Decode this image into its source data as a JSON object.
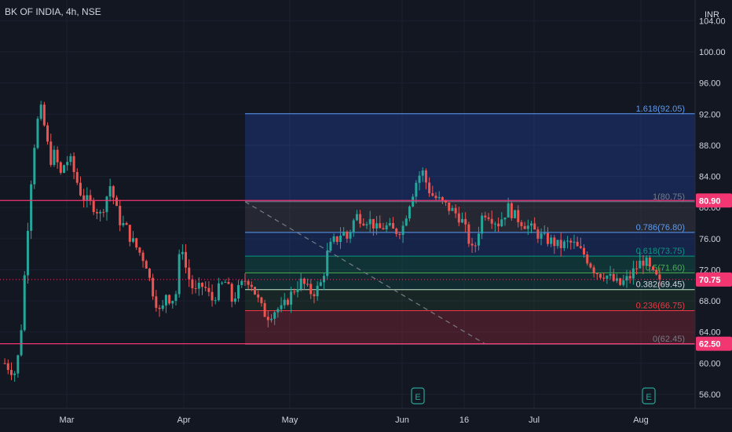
{
  "header": {
    "title": "BK OF INDIA, 4h, NSE"
  },
  "currency": "INR",
  "colors": {
    "background": "#131722",
    "up": "#26a69a",
    "down": "#ef5350",
    "grid": "#1e222d",
    "axis_text": "#d1d4dc",
    "range_line": "#f23672",
    "current_price": "#f23672"
  },
  "price_axis": {
    "ticks": [
      "104.00",
      "100.00",
      "96.00",
      "92.00",
      "88.00",
      "84.00",
      "80.00",
      "76.00",
      "72.00",
      "68.00",
      "64.00",
      "60.00",
      "56.00"
    ],
    "ylim": [
      53.5,
      106
    ]
  },
  "time_axis": {
    "ticks": [
      "Mar",
      "Apr",
      "May",
      "Jun",
      "16",
      "Jul",
      "Aug"
    ]
  },
  "price_badges": {
    "high": "80.90",
    "current": "70.75",
    "low": "62.50"
  },
  "fibonacci": {
    "levels": [
      {
        "label": "1.618(92.05)",
        "price": 92.05
      },
      {
        "label": "1(80.75)",
        "price": 80.75
      },
      {
        "label": "0.786(76.80)",
        "price": 76.8
      },
      {
        "label": "0.618(73.75)",
        "price": 73.75
      },
      {
        "label": "0.5(71.60)",
        "price": 71.6
      },
      {
        "label": "0.382(69.45)",
        "price": 69.45
      },
      {
        "label": "0.236(66.75)",
        "price": 66.75
      },
      {
        "label": "0(62.45)",
        "price": 62.45
      }
    ]
  },
  "horizontal_levels": [
    80.9,
    62.5
  ],
  "current_price": 70.75,
  "events": [
    "E",
    "E"
  ],
  "chart_data": {
    "type": "candlestick",
    "title": "BK OF INDIA, 4h, NSE",
    "y_unit": "INR",
    "ylim": [
      53.5,
      106
    ],
    "x_ticks": [
      "Mar",
      "Apr",
      "May",
      "Jun",
      "16",
      "Jul",
      "Aug"
    ],
    "path": [
      [
        0,
        60
      ],
      [
        1,
        59.3
      ],
      [
        2,
        58.8
      ],
      [
        3,
        62
      ],
      [
        4,
        72
      ],
      [
        5,
        82
      ],
      [
        6,
        89
      ],
      [
        7,
        93
      ],
      [
        8,
        90
      ],
      [
        9,
        86
      ],
      [
        10,
        87
      ],
      [
        11,
        84
      ],
      [
        12,
        86
      ],
      [
        13,
        86
      ],
      [
        14,
        84
      ],
      [
        15,
        82
      ],
      [
        16,
        81
      ],
      [
        17,
        80.5
      ],
      [
        18,
        80
      ],
      [
        19,
        79
      ],
      [
        20,
        81
      ],
      [
        21,
        83
      ],
      [
        22,
        80
      ],
      [
        23,
        78
      ],
      [
        24,
        77.5
      ],
      [
        25,
        76
      ],
      [
        26,
        75
      ],
      [
        27,
        74
      ],
      [
        28,
        73
      ],
      [
        29,
        70
      ],
      [
        30,
        68
      ],
      [
        31,
        66
      ],
      [
        32,
        69
      ],
      [
        33,
        68
      ],
      [
        34,
        69
      ],
      [
        35,
        76
      ],
      [
        36,
        72
      ],
      [
        37,
        70
      ],
      [
        38,
        69
      ],
      [
        39,
        70
      ],
      [
        40,
        69.5
      ],
      [
        41,
        68
      ],
      [
        42,
        69
      ],
      [
        43,
        70
      ],
      [
        44,
        70.5
      ],
      [
        45,
        68
      ],
      [
        46,
        69
      ],
      [
        47,
        70
      ],
      [
        48,
        71
      ],
      [
        49,
        70.2
      ],
      [
        50,
        68.5
      ],
      [
        51,
        67
      ],
      [
        52,
        66
      ],
      [
        53,
        66.5
      ],
      [
        54,
        67
      ],
      [
        55,
        66.8
      ],
      [
        56,
        68
      ],
      [
        57,
        69
      ],
      [
        58,
        70
      ],
      [
        59,
        70.5
      ],
      [
        60,
        69.5
      ],
      [
        61,
        69
      ],
      [
        62,
        69.5
      ],
      [
        63,
        70.5
      ],
      [
        64,
        74
      ],
      [
        65,
        75.5
      ],
      [
        66,
        76
      ],
      [
        67,
        77
      ],
      [
        68,
        76
      ],
      [
        69,
        78
      ],
      [
        70,
        79
      ],
      [
        71,
        78.5
      ],
      [
        72,
        78.5
      ],
      [
        73,
        78
      ],
      [
        74,
        77
      ],
      [
        75,
        77.5
      ],
      [
        76,
        77.5
      ],
      [
        77,
        77
      ],
      [
        78,
        77
      ],
      [
        79,
        77.5
      ],
      [
        80,
        80
      ],
      [
        81,
        82
      ],
      [
        82,
        84
      ],
      [
        83,
        84.5
      ],
      [
        84,
        82.5
      ],
      [
        85,
        81.5
      ],
      [
        86,
        81
      ],
      [
        87,
        80.5
      ],
      [
        88,
        80
      ],
      [
        89,
        79.5
      ],
      [
        90,
        79
      ],
      [
        91,
        78
      ],
      [
        92,
        76
      ],
      [
        93,
        74
      ],
      [
        94,
        77
      ],
      [
        95,
        79.5
      ],
      [
        96,
        79.2
      ],
      [
        97,
        78.5
      ],
      [
        98,
        78
      ],
      [
        99,
        79
      ],
      [
        100,
        80
      ],
      [
        101,
        79
      ],
      [
        102,
        78.5
      ],
      [
        103,
        78
      ],
      [
        104,
        77.5
      ],
      [
        105,
        77
      ],
      [
        106,
        76.5
      ],
      [
        107,
        76
      ],
      [
        108,
        75.8
      ],
      [
        109,
        75.5
      ],
      [
        110,
        75
      ],
      [
        111,
        75.2
      ],
      [
        112,
        75.5
      ],
      [
        113,
        75.2
      ],
      [
        114,
        74.5
      ],
      [
        115,
        74
      ],
      [
        116,
        73
      ],
      [
        117,
        72
      ],
      [
        118,
        71.5
      ],
      [
        119,
        71.5
      ],
      [
        120,
        71
      ],
      [
        121,
        70.5
      ],
      [
        122,
        70
      ],
      [
        123,
        70.5
      ],
      [
        124,
        71
      ],
      [
        125,
        72
      ],
      [
        126,
        72.8
      ],
      [
        127,
        73.3
      ],
      [
        128,
        72
      ],
      [
        129,
        71
      ],
      [
        130,
        70.75
      ]
    ],
    "levels": [
      80.9,
      62.5
    ],
    "fibonacci_levels": [
      92.05,
      80.75,
      76.8,
      73.75,
      71.6,
      69.45,
      66.75,
      62.45
    ],
    "last": 70.75
  }
}
